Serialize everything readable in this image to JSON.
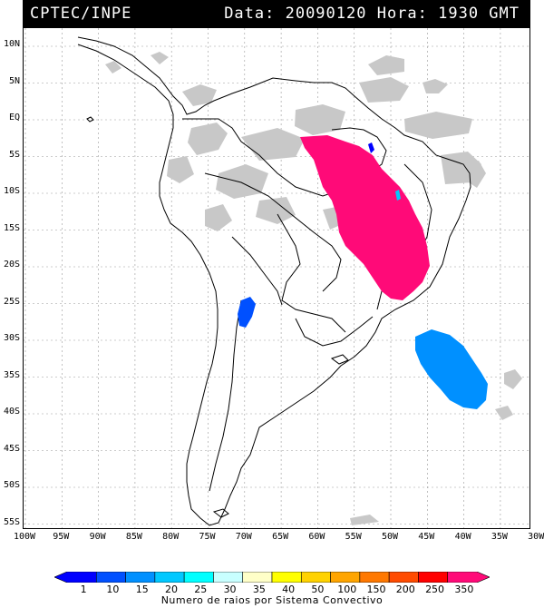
{
  "header": {
    "left_text": "CPTEC/INPE",
    "right_text": "Data: 20090120 Hora: 1930 GMT"
  },
  "map": {
    "lat_labels": [
      "10N",
      "5N",
      "EQ",
      "5S",
      "10S",
      "15S",
      "20S",
      "25S",
      "30S",
      "35S",
      "40S",
      "45S",
      "50S",
      "55S"
    ],
    "lon_labels": [
      "100W",
      "95W",
      "90W",
      "85W",
      "80W",
      "75W",
      "70W",
      "65W",
      "60W",
      "55W",
      "50W",
      "45W",
      "40W",
      "35W",
      "30W"
    ]
  },
  "legend": {
    "values": [
      "1",
      "10",
      "15",
      "20",
      "25",
      "30",
      "35",
      "40",
      "50",
      "100",
      "150",
      "200",
      "250",
      "350"
    ],
    "colors": [
      "#0000ff",
      "#0050ff",
      "#0090ff",
      "#00c8ff",
      "#00ffff",
      "#c8ffff",
      "#ffffc8",
      "#ffff00",
      "#ffd200",
      "#ffa500",
      "#ff7800",
      "#ff4b00",
      "#ff0000",
      "#ff0a78"
    ],
    "title": "Numero de raios por Sistema Convectivo"
  }
}
